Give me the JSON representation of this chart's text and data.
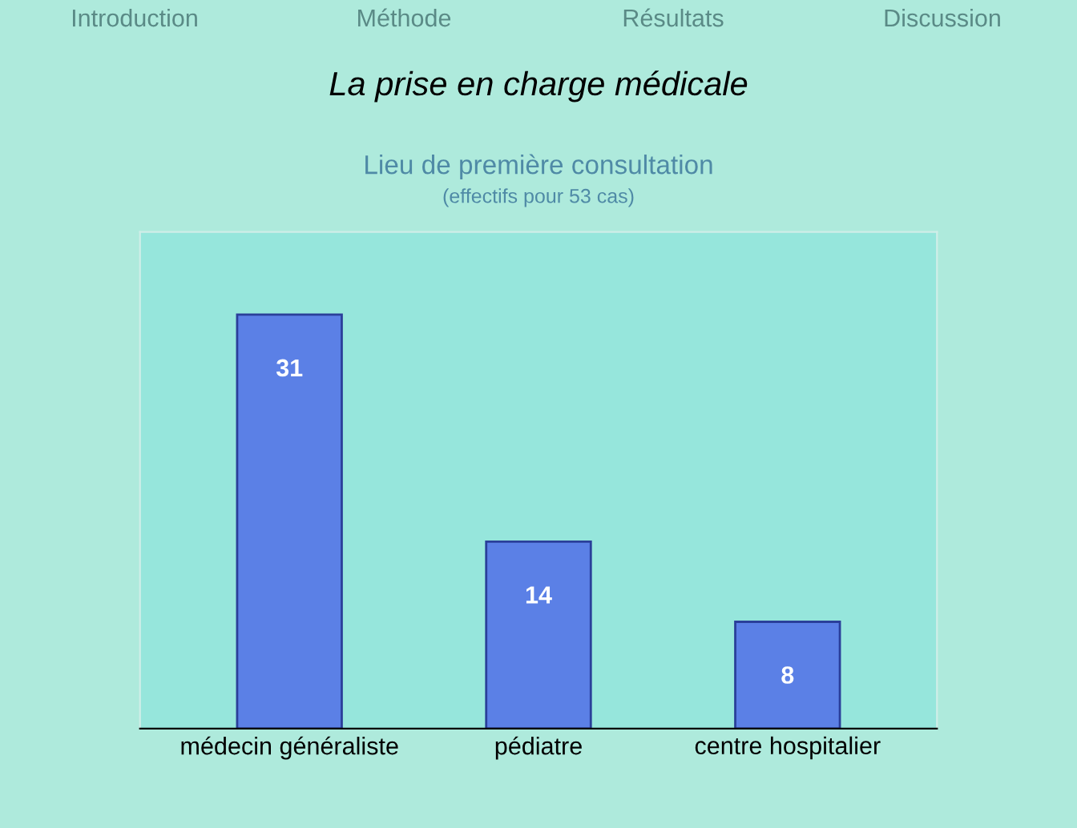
{
  "chart_data": {
    "type": "bar",
    "title": "La prise en charge médicale",
    "subtitle": "Lieu de première consultation",
    "annotations": [
      "(effectifs pour 53 cas)",
      "Introduction",
      "Méthode",
      "Résultats",
      "Discussion"
    ],
    "categories": [
      "médecin généraliste",
      "pédiatre",
      "centre hospitalier"
    ],
    "values": [
      31,
      14,
      8
    ],
    "color": "#5b80e6",
    "data_labels": true
  }
}
